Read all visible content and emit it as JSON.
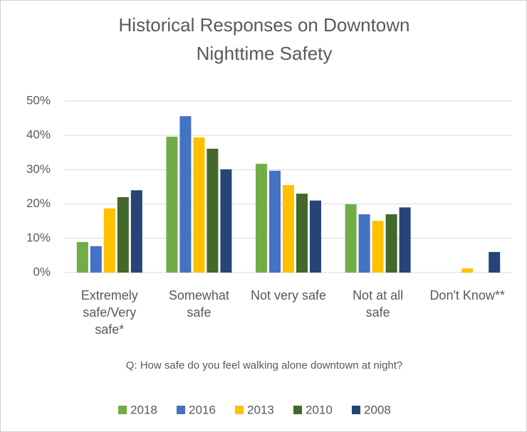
{
  "chart_data": {
    "type": "bar",
    "title": "Historical Responses on Downtown Nighttime Safety",
    "x_label": "Q: How safe do you feel walking alone downtown at night?",
    "categories": [
      "Extremely safe/Very safe*",
      "Somewhat safe",
      "Not very safe",
      "Not at all safe",
      "Don't Know**"
    ],
    "series": [
      {
        "name": "2018",
        "color": "#70ad47",
        "values": [
          8.9,
          39.6,
          31.7,
          19.9,
          0
        ]
      },
      {
        "name": "2016",
        "color": "#4472c4",
        "values": [
          7.7,
          45.6,
          29.7,
          17,
          0
        ]
      },
      {
        "name": "2013",
        "color": "#ffc000",
        "values": [
          18.7,
          39.4,
          25.5,
          15.1,
          1.2
        ]
      },
      {
        "name": "2010",
        "color": "#43682b",
        "values": [
          22,
          36.1,
          23,
          17,
          0
        ]
      },
      {
        "name": "2008",
        "color": "#264478",
        "values": [
          24,
          30.1,
          21,
          19,
          6
        ]
      }
    ],
    "ylim": [
      0,
      50
    ],
    "yticks": [
      {
        "value": 0,
        "label": "0%"
      },
      {
        "value": 10,
        "label": "10%"
      },
      {
        "value": 20,
        "label": "20%"
      },
      {
        "value": 30,
        "label": "30%"
      },
      {
        "value": 40,
        "label": "40%"
      },
      {
        "value": 50,
        "label": "50%"
      }
    ],
    "grid": true,
    "legend": "bottom"
  }
}
